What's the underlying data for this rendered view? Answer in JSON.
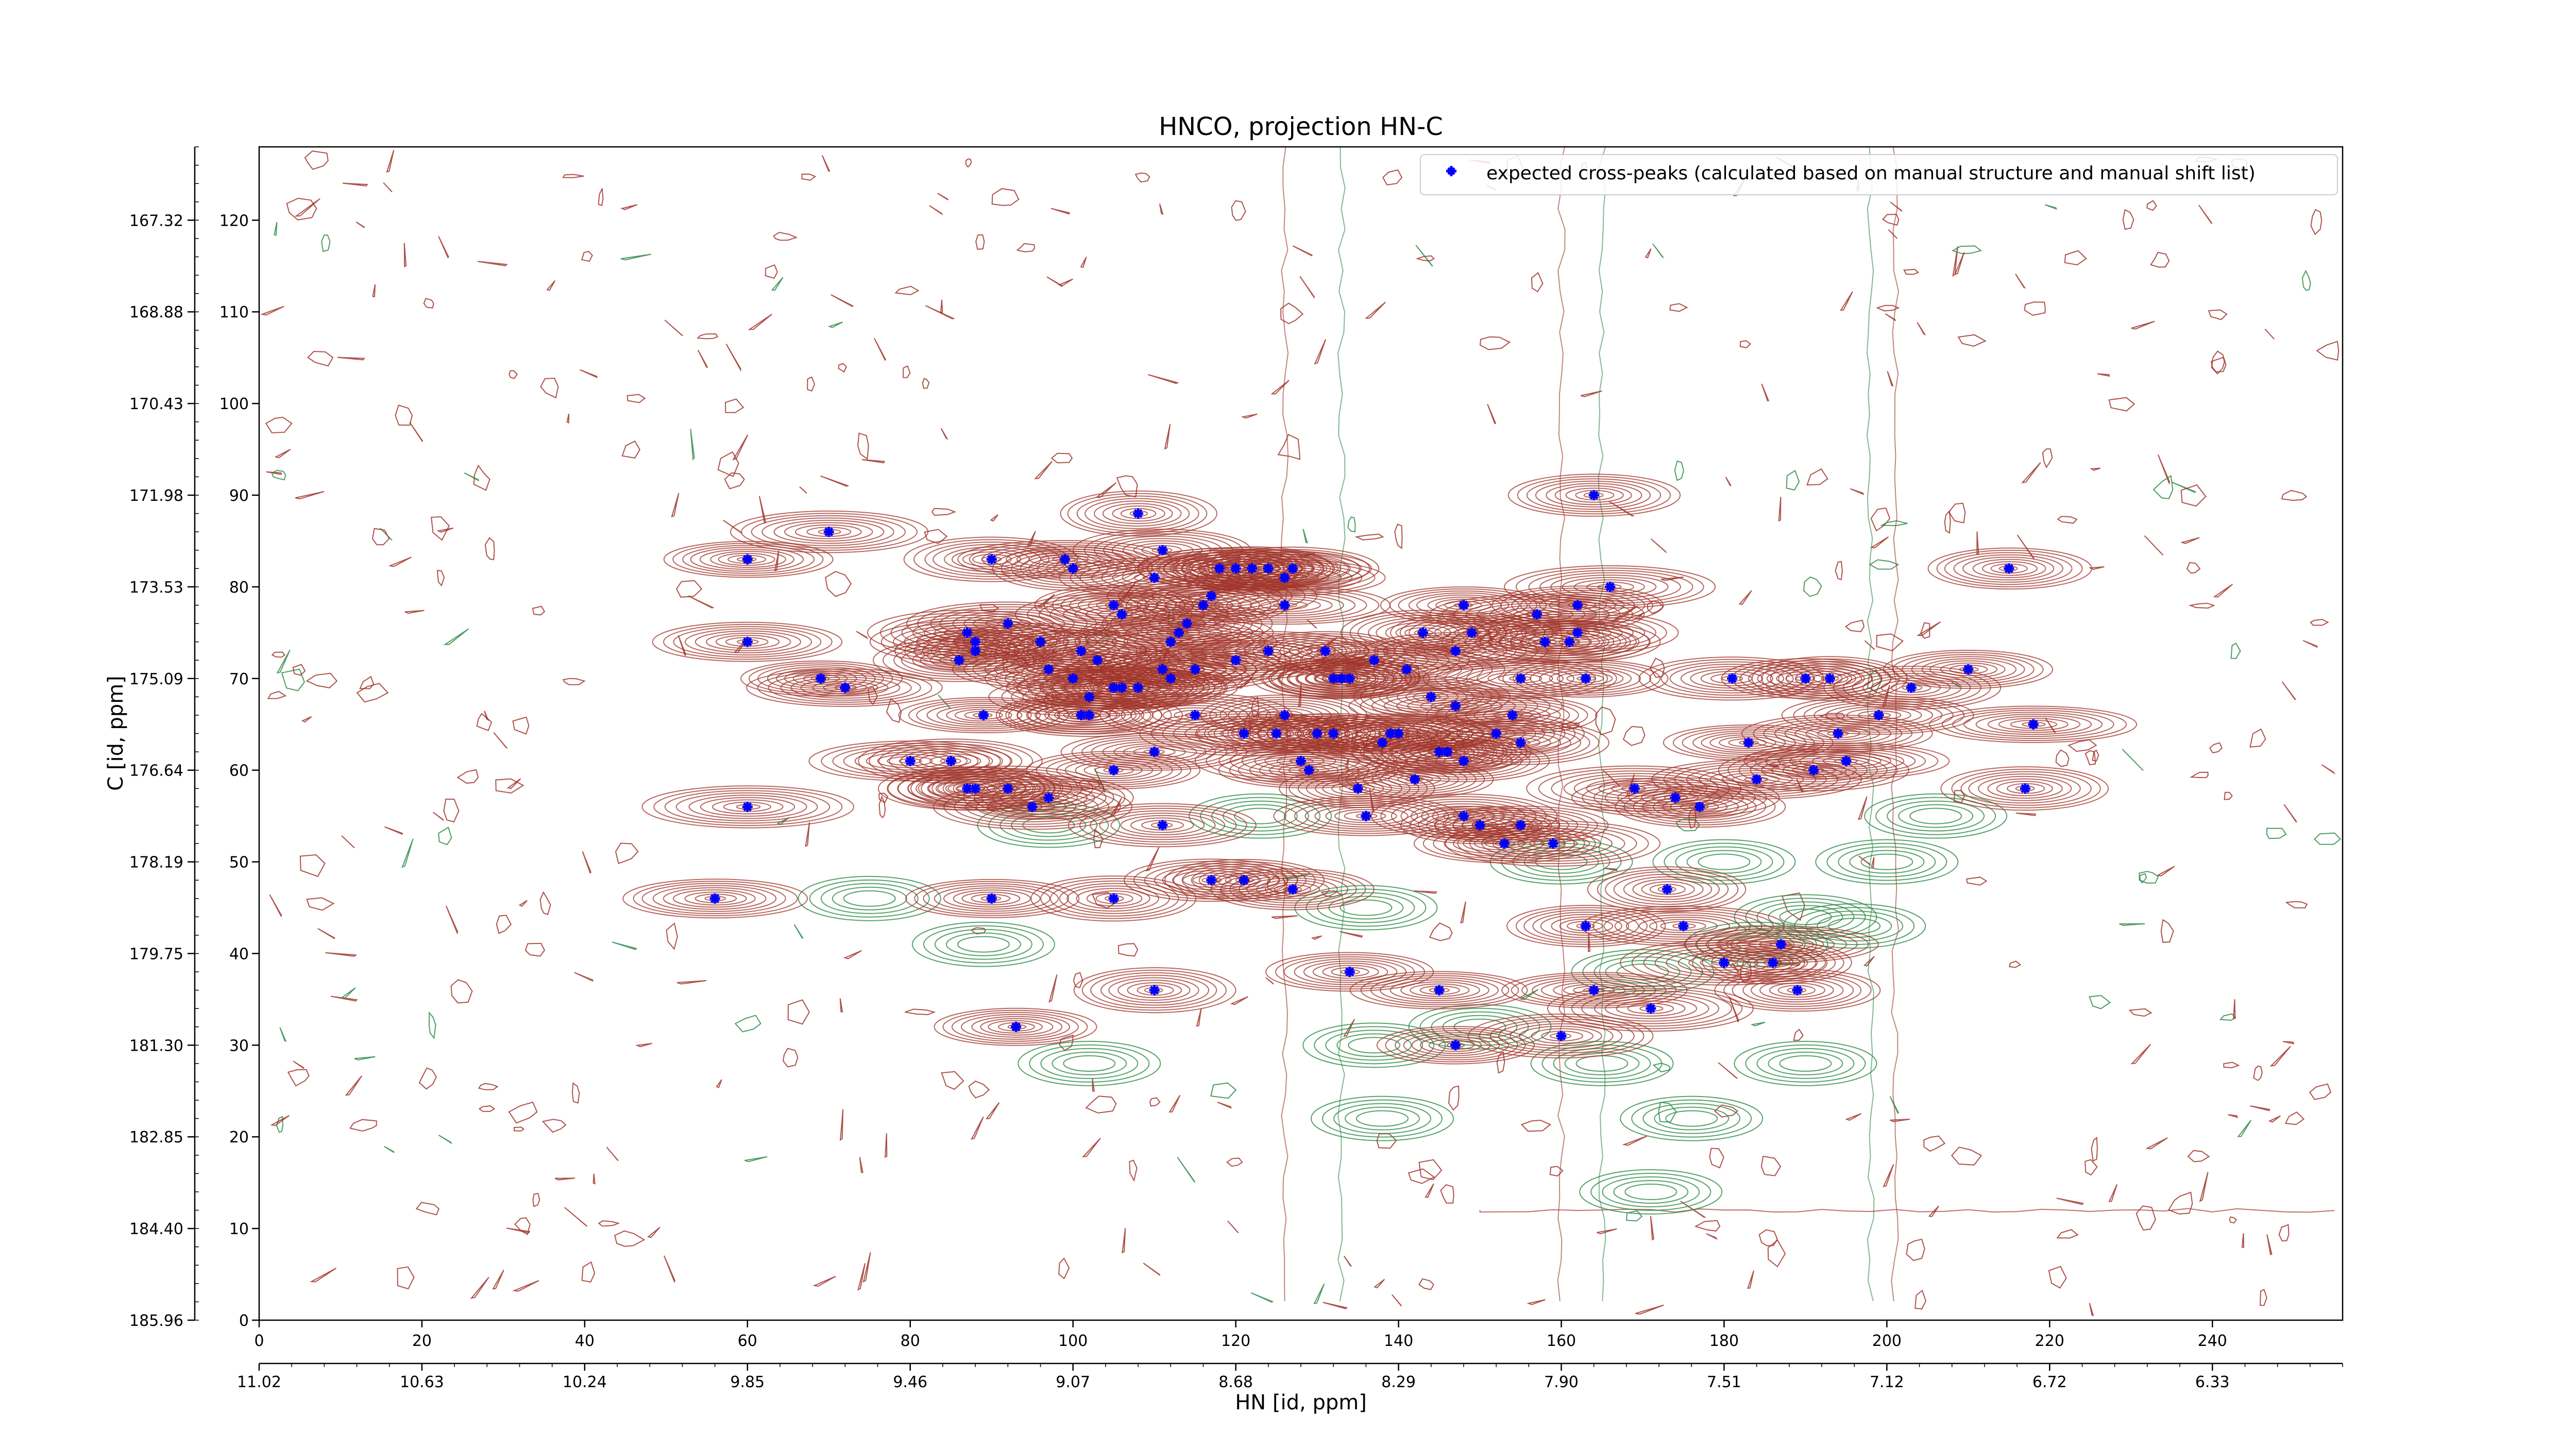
{
  "chart_data": {
    "type": "contour",
    "title": "HNCO, projection HN-C",
    "xlabel": "HN [id, ppm]",
    "ylabel": "C [id, ppm]",
    "x_index_range": [
      0,
      256
    ],
    "y_index_range": [
      0,
      128
    ],
    "x_index_ticks": [
      "0",
      "20",
      "40",
      "60",
      "80",
      "100",
      "120",
      "140",
      "160",
      "180",
      "200",
      "220",
      "240"
    ],
    "x_ppm_ticks": [
      "11.02",
      "10.63",
      "10.24",
      "9.85",
      "9.46",
      "9.07",
      "8.68",
      "8.29",
      "7.90",
      "7.51",
      "7.12",
      "6.72",
      "6.33"
    ],
    "y_index_ticks": [
      "0",
      "10",
      "20",
      "30",
      "40",
      "50",
      "60",
      "70",
      "80",
      "90",
      "100",
      "110",
      "120"
    ],
    "y_ppm_ticks": [
      "185.96",
      "184.40",
      "182.85",
      "181.30",
      "179.75",
      "178.19",
      "176.64",
      "175.09",
      "173.53",
      "171.98",
      "170.43",
      "168.88",
      "167.32"
    ],
    "legend": {
      "label": "expected cross-peaks (calculated based on manual structure and manual shift list)",
      "position": "upper right",
      "marker_color": "#0000ff"
    },
    "colors": {
      "positive_contours": "#a0342a",
      "negative_contours": "#2e8b46",
      "peaks": "#0000ff"
    },
    "expected_peaks": [
      [
        60,
        83
      ],
      [
        70,
        86
      ],
      [
        60,
        74
      ],
      [
        69,
        70
      ],
      [
        72,
        69
      ],
      [
        60,
        56
      ],
      [
        56,
        46
      ],
      [
        80,
        61
      ],
      [
        85,
        61
      ],
      [
        87,
        58
      ],
      [
        88,
        58
      ],
      [
        86,
        72
      ],
      [
        87,
        75
      ],
      [
        88,
        73
      ],
      [
        88,
        74
      ],
      [
        89,
        66
      ],
      [
        90,
        46
      ],
      [
        90,
        83
      ],
      [
        92,
        76
      ],
      [
        92,
        58
      ],
      [
        93,
        32
      ],
      [
        95,
        56
      ],
      [
        96,
        74
      ],
      [
        97,
        71
      ],
      [
        97,
        57
      ],
      [
        99,
        83
      ],
      [
        100,
        70
      ],
      [
        100,
        82
      ],
      [
        101,
        73
      ],
      [
        101,
        66
      ],
      [
        102,
        66
      ],
      [
        102,
        68
      ],
      [
        103,
        72
      ],
      [
        105,
        60
      ],
      [
        105,
        69
      ],
      [
        105,
        46
      ],
      [
        105,
        78
      ],
      [
        106,
        69
      ],
      [
        106,
        77
      ],
      [
        108,
        88
      ],
      [
        108,
        69
      ],
      [
        110,
        81
      ],
      [
        110,
        62
      ],
      [
        110,
        36
      ],
      [
        111,
        84
      ],
      [
        111,
        71
      ],
      [
        111,
        54
      ],
      [
        112,
        74
      ],
      [
        112,
        70
      ],
      [
        113,
        75
      ],
      [
        114,
        76
      ],
      [
        115,
        71
      ],
      [
        115,
        66
      ],
      [
        116,
        78
      ],
      [
        117,
        79
      ],
      [
        117,
        48
      ],
      [
        118,
        82
      ],
      [
        120,
        82
      ],
      [
        120,
        72
      ],
      [
        121,
        64
      ],
      [
        121,
        48
      ],
      [
        122,
        82
      ],
      [
        124,
        73
      ],
      [
        124,
        82
      ],
      [
        125,
        64
      ],
      [
        126,
        78
      ],
      [
        126,
        66
      ],
      [
        126,
        81
      ],
      [
        127,
        82
      ],
      [
        127,
        47
      ],
      [
        128,
        61
      ],
      [
        129,
        60
      ],
      [
        130,
        64
      ],
      [
        131,
        73
      ],
      [
        132,
        70
      ],
      [
        132,
        64
      ],
      [
        133,
        70
      ],
      [
        134,
        38
      ],
      [
        134,
        70
      ],
      [
        135,
        58
      ],
      [
        136,
        55
      ],
      [
        137,
        72
      ],
      [
        138,
        63
      ],
      [
        139,
        64
      ],
      [
        140,
        64
      ],
      [
        141,
        71
      ],
      [
        142,
        59
      ],
      [
        143,
        75
      ],
      [
        144,
        68
      ],
      [
        145,
        36
      ],
      [
        145,
        62
      ],
      [
        146,
        62
      ],
      [
        147,
        30
      ],
      [
        147,
        67
      ],
      [
        147,
        73
      ],
      [
        148,
        78
      ],
      [
        148,
        61
      ],
      [
        148,
        55
      ],
      [
        149,
        75
      ],
      [
        150,
        54
      ],
      [
        152,
        64
      ],
      [
        153,
        52
      ],
      [
        154,
        66
      ],
      [
        155,
        63
      ],
      [
        155,
        70
      ],
      [
        155,
        54
      ],
      [
        157,
        77
      ],
      [
        158,
        74
      ],
      [
        159,
        52
      ],
      [
        160,
        31
      ],
      [
        161,
        74
      ],
      [
        162,
        75
      ],
      [
        162,
        78
      ],
      [
        163,
        70
      ],
      [
        163,
        43
      ],
      [
        164,
        36
      ],
      [
        164,
        90
      ],
      [
        166,
        80
      ],
      [
        169,
        58
      ],
      [
        171,
        34
      ],
      [
        173,
        47
      ],
      [
        174,
        57
      ],
      [
        175,
        43
      ],
      [
        177,
        56
      ],
      [
        180,
        39
      ],
      [
        181,
        70
      ],
      [
        183,
        63
      ],
      [
        184,
        59
      ],
      [
        186,
        39
      ],
      [
        187,
        41
      ],
      [
        189,
        36
      ],
      [
        190,
        70
      ],
      [
        191,
        60
      ],
      [
        193,
        70
      ],
      [
        194,
        64
      ],
      [
        195,
        61
      ],
      [
        199,
        66
      ],
      [
        203,
        69
      ],
      [
        210,
        71
      ],
      [
        215,
        82
      ],
      [
        217,
        58
      ],
      [
        218,
        65
      ]
    ]
  }
}
